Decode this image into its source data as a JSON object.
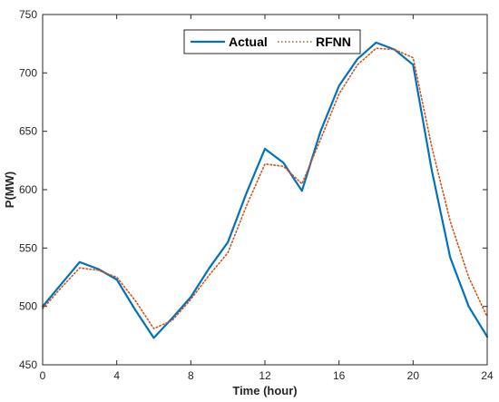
{
  "chart_data": {
    "type": "line",
    "xlabel": "Time (hour)",
    "ylabel": "P(MW)",
    "xlim": [
      0,
      24
    ],
    "ylim": [
      450,
      750
    ],
    "xticks": [
      "0",
      "4",
      "8",
      "12",
      "16",
      "20",
      "24"
    ],
    "yticks": [
      "450",
      "500",
      "550",
      "600",
      "650",
      "700",
      "750"
    ],
    "grid": false,
    "legend_position": "top-center",
    "series": [
      {
        "name": "Actual",
        "color": "#0072BD",
        "style": "solid",
        "x": [
          0,
          1,
          2,
          3,
          4,
          5,
          6,
          7,
          8,
          9,
          10,
          11,
          12,
          13,
          14,
          15,
          16,
          17,
          18,
          19,
          20,
          21,
          22,
          23,
          24
        ],
        "y": [
          500,
          519,
          538,
          532,
          523,
          497,
          473,
          490,
          508,
          533,
          555,
          597,
          635,
          623,
          599,
          650,
          689,
          712,
          726,
          720,
          707,
          617,
          542,
          500,
          474
        ]
      },
      {
        "name": "RFNN",
        "color": "#D95319",
        "style": "dotted",
        "x": [
          0,
          1,
          2,
          3,
          4,
          5,
          6,
          7,
          8,
          9,
          10,
          11,
          12,
          13,
          14,
          15,
          16,
          17,
          18,
          19,
          20,
          21,
          22,
          23,
          24
        ],
        "y": [
          498,
          516,
          533,
          531,
          525,
          505,
          481,
          488,
          506,
          527,
          546,
          586,
          622,
          620,
          605,
          643,
          682,
          707,
          721,
          720,
          713,
          637,
          573,
          525,
          491
        ]
      }
    ]
  }
}
